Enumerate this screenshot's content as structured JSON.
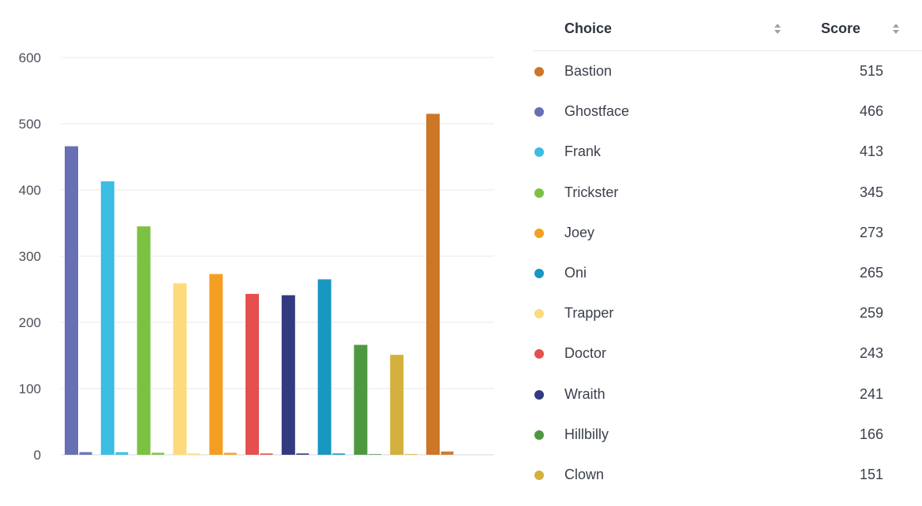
{
  "chart_data": {
    "type": "bar",
    "categories": [
      "Ghostface",
      "Frank",
      "Trickster",
      "Trapper",
      "Joey",
      "Doctor",
      "Wraith",
      "Oni",
      "Hillbilly",
      "Clown",
      "Bastion"
    ],
    "series": [
      {
        "values": [
          466,
          413,
          345,
          259,
          273,
          243,
          241,
          265,
          166,
          151,
          515
        ]
      },
      {
        "values": [
          4,
          4,
          3,
          2,
          3,
          2,
          2,
          2,
          1,
          1,
          5
        ]
      }
    ],
    "colors": [
      "#6770b5",
      "#3bbde4",
      "#7cc242",
      "#fddb7c",
      "#f59f22",
      "#e5504e",
      "#323a80",
      "#1798c1",
      "#4e9940",
      "#d4b13f",
      "#cc7628"
    ],
    "yticks": [
      "0",
      "100",
      "200",
      "300",
      "400",
      "500",
      "600"
    ],
    "ylim": [
      0,
      600
    ],
    "grid": true
  },
  "table": {
    "headers": {
      "choice": "Choice",
      "score": "Score"
    },
    "rows": [
      {
        "name": "Bastion",
        "score": "515",
        "color": "#cc7628"
      },
      {
        "name": "Ghostface",
        "score": "466",
        "color": "#6770b5"
      },
      {
        "name": "Frank",
        "score": "413",
        "color": "#3bbde4"
      },
      {
        "name": "Trickster",
        "score": "345",
        "color": "#7cc242"
      },
      {
        "name": "Joey",
        "score": "273",
        "color": "#f59f22"
      },
      {
        "name": "Oni",
        "score": "265",
        "color": "#1798c1"
      },
      {
        "name": "Trapper",
        "score": "259",
        "color": "#fddb7c"
      },
      {
        "name": "Doctor",
        "score": "243",
        "color": "#e5504e"
      },
      {
        "name": "Wraith",
        "score": "241",
        "color": "#323a80"
      },
      {
        "name": "Hillbilly",
        "score": "166",
        "color": "#4e9940"
      },
      {
        "name": "Clown",
        "score": "151",
        "color": "#d4b13f"
      }
    ]
  }
}
